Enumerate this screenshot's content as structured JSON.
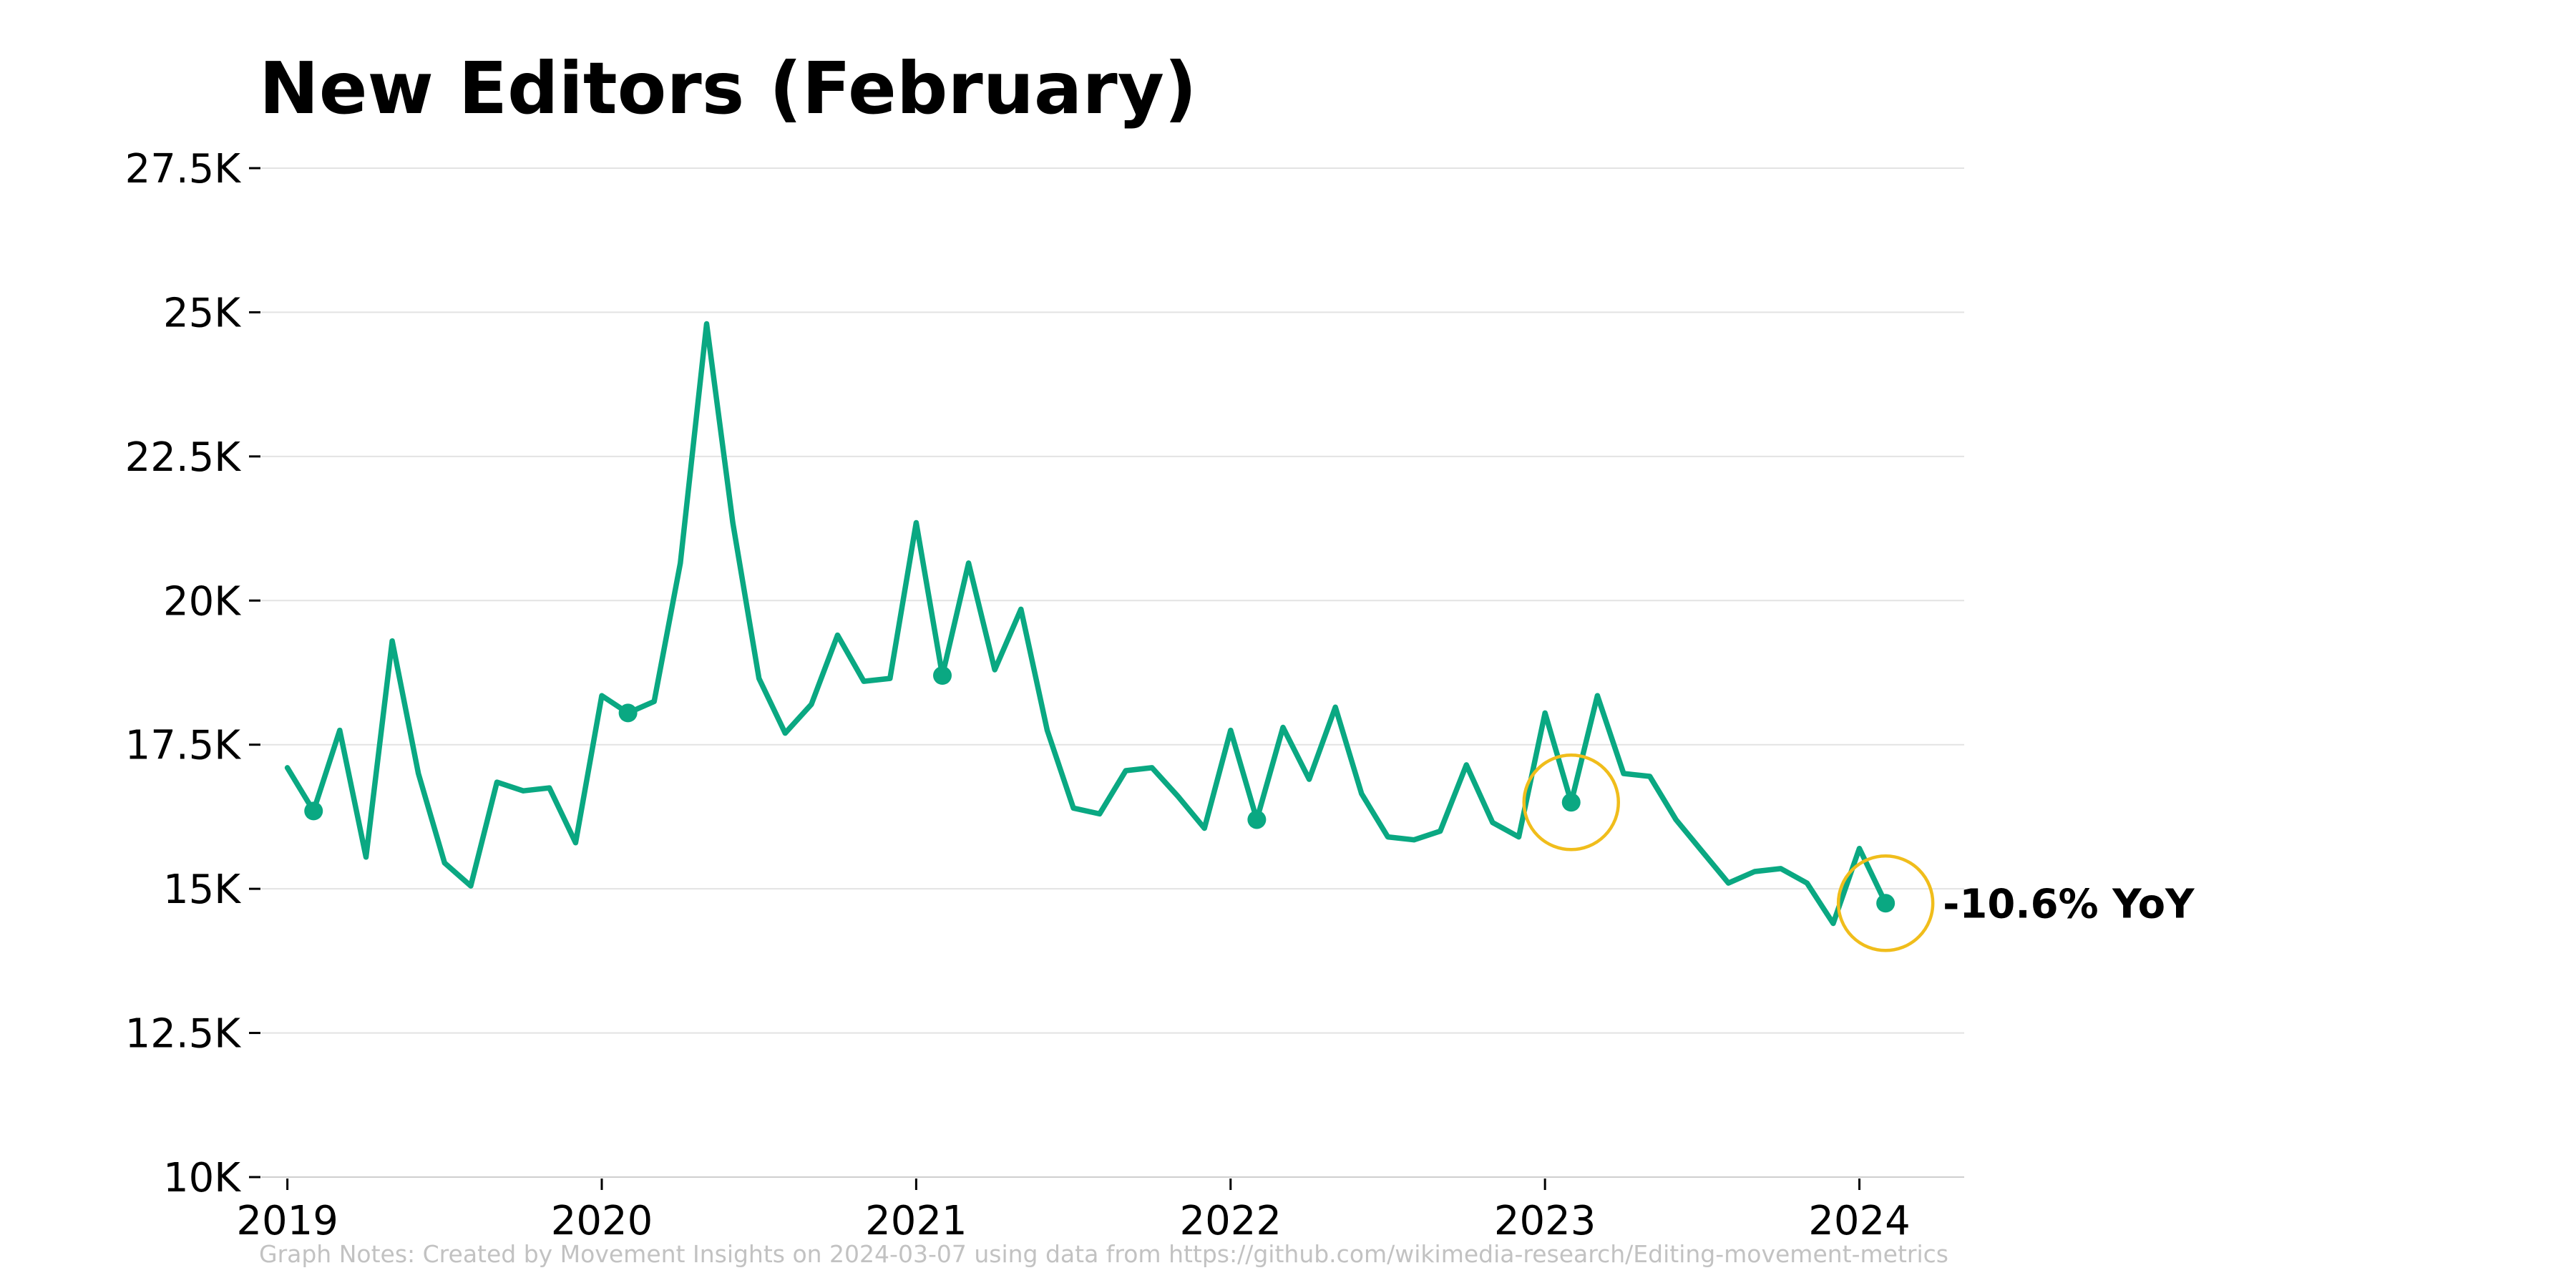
{
  "chart_data": {
    "type": "line",
    "title": "New Editors (February)",
    "xlabel": "",
    "ylabel": "",
    "x_axis": {
      "tick_labels": [
        "2019",
        "2020",
        "2021",
        "2022",
        "2023",
        "2024"
      ],
      "range": [
        "2018-12",
        "2024-05"
      ]
    },
    "y_axis": {
      "range": [
        10000,
        27500
      ],
      "ticks": [
        10000,
        12500,
        15000,
        17500,
        20000,
        22500,
        25000,
        27500
      ],
      "tick_labels": [
        "10K",
        "12.5K",
        "15K",
        "17.5K",
        "20K",
        "22.5K",
        "25K",
        "27.5K"
      ]
    },
    "grid": {
      "horizontal": true,
      "vertical": false
    },
    "legend": "none",
    "series": [
      {
        "color": "#0aa882",
        "x": [
          "2019-01",
          "2019-02",
          "2019-03",
          "2019-04",
          "2019-05",
          "2019-06",
          "2019-07",
          "2019-08",
          "2019-09",
          "2019-10",
          "2019-11",
          "2019-12",
          "2020-01",
          "2020-02",
          "2020-03",
          "2020-04",
          "2020-05",
          "2020-06",
          "2020-07",
          "2020-08",
          "2020-09",
          "2020-10",
          "2020-11",
          "2020-12",
          "2021-01",
          "2021-02",
          "2021-03",
          "2021-04",
          "2021-05",
          "2021-06",
          "2021-07",
          "2021-08",
          "2021-09",
          "2021-10",
          "2021-11",
          "2021-12",
          "2022-01",
          "2022-02",
          "2022-03",
          "2022-04",
          "2022-05",
          "2022-06",
          "2022-07",
          "2022-08",
          "2022-09",
          "2022-10",
          "2022-11",
          "2022-12",
          "2023-01",
          "2023-02",
          "2023-03",
          "2023-04",
          "2023-05",
          "2023-06",
          "2023-07",
          "2023-08",
          "2023-09",
          "2023-10",
          "2023-11",
          "2023-12",
          "2024-01",
          "2024-02"
        ],
        "values": [
          17100,
          16350,
          17750,
          15550,
          19300,
          17000,
          15450,
          15050,
          16850,
          16700,
          16750,
          15800,
          18350,
          18050,
          18250,
          20650,
          24800,
          21350,
          18650,
          17700,
          18200,
          19400,
          18600,
          18650,
          21350,
          18700,
          20650,
          18800,
          19850,
          17750,
          16400,
          16300,
          17050,
          17100,
          16600,
          16050,
          17750,
          16200,
          17800,
          16900,
          18150,
          16650,
          15900,
          15850,
          16000,
          17150,
          16150,
          15900,
          18050,
          16500,
          18350,
          17000,
          16950,
          16200,
          15650,
          15100,
          15300,
          15350,
          15100,
          14400,
          15700,
          14750
        ],
        "highlight_markers": [
          "2019-02",
          "2020-02",
          "2021-02",
          "2022-02",
          "2023-02",
          "2024-02"
        ]
      }
    ],
    "annotations": {
      "circled_points": [
        "2023-02",
        "2024-02"
      ],
      "circle_color": "#f0bd1b",
      "label": "-10.6% YoY"
    },
    "footnote": "Graph Notes: Created by Movement Insights  on 2024-03-07 using data from https://github.com/wikimedia-research/Editing-movement-metrics"
  }
}
